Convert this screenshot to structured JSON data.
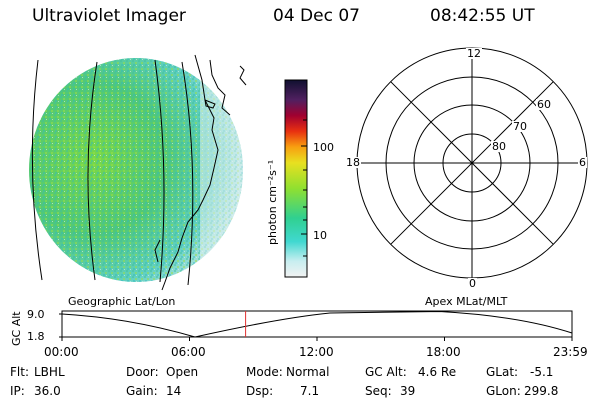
{
  "header": {
    "instrument": "Ultraviolet Imager",
    "date": "04 Dec 07",
    "time": "08:42:55 UT"
  },
  "colorbar": {
    "unit_label": "photon cm⁻²s⁻¹",
    "ticks": [
      "100",
      "10"
    ]
  },
  "polar_plot": {
    "mlt_labels": {
      "top": "12",
      "right": "6",
      "bottom": "0",
      "left": "18"
    },
    "lat_labels": [
      "60",
      "70",
      "80"
    ]
  },
  "projections": {
    "left": "Geographic Lat/Lon",
    "right": "Apex MLat/MLT"
  },
  "altitude_plot": {
    "ylabel": "GC Alt",
    "yticks": [
      "9.0",
      "1.8"
    ],
    "xticks": [
      "00:00",
      "06:00",
      "12:00",
      "18:00",
      "23:59"
    ],
    "current_time_fraction": 0.36
  },
  "status": {
    "filter_label": "Flt:",
    "filter_value": "LBHL",
    "door_label": "Door:",
    "door_value": "Open",
    "mode_label": "Mode:",
    "mode_value": "Normal",
    "gcalt_label": "GC Alt:",
    "gcalt_value": "4.6 Re",
    "glat_label": "GLat:",
    "glat_value": "-5.1",
    "ip_label": "IP:",
    "ip_value": "36.0",
    "gain_label": "Gain:",
    "gain_value": "14",
    "dsp_label": "Dsp:",
    "dsp_value": "7.1",
    "seq_label": "Seq:",
    "seq_value": "39",
    "glon_label": "GLon:",
    "glon_value": "299.8"
  }
}
